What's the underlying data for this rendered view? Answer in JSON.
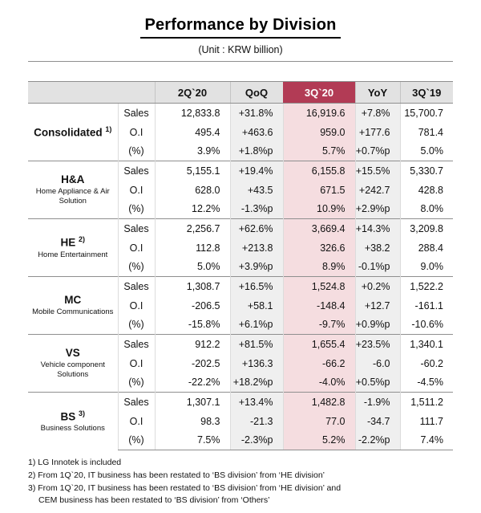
{
  "header": {
    "title": "Performance by Division",
    "unit": "(Unit : KRW billion)"
  },
  "table": {
    "columns": [
      "2Q`20",
      "QoQ",
      "3Q`20",
      "YoY",
      "3Q`19"
    ],
    "highlight_column_index": 2,
    "row_labels": [
      "Sales",
      "O.I",
      "(%)"
    ],
    "divisions": [
      {
        "name": "Consolidated",
        "sup": "1)",
        "subtitle": "",
        "rows": [
          [
            "12,833.8",
            "+31.8%",
            "16,919.6",
            "+7.8%",
            "15,700.7"
          ],
          [
            "495.4",
            "+463.6",
            "959.0",
            "+177.6",
            "781.4"
          ],
          [
            "3.9%",
            "+1.8%p",
            "5.7%",
            "+0.7%p",
            "5.0%"
          ]
        ]
      },
      {
        "name": "H&A",
        "sup": "",
        "subtitle": "Home Appliance & Air Solution",
        "rows": [
          [
            "5,155.1",
            "+19.4%",
            "6,155.8",
            "+15.5%",
            "5,330.7"
          ],
          [
            "628.0",
            "+43.5",
            "671.5",
            "+242.7",
            "428.8"
          ],
          [
            "12.2%",
            "-1.3%p",
            "10.9%",
            "+2.9%p",
            "8.0%"
          ]
        ]
      },
      {
        "name": "HE",
        "sup": "2)",
        "subtitle": "Home Entertainment",
        "rows": [
          [
            "2,256.7",
            "+62.6%",
            "3,669.4",
            "+14.3%",
            "3,209.8"
          ],
          [
            "112.8",
            "+213.8",
            "326.6",
            "+38.2",
            "288.4"
          ],
          [
            "5.0%",
            "+3.9%p",
            "8.9%",
            "-0.1%p",
            "9.0%"
          ]
        ]
      },
      {
        "name": "MC",
        "sup": "",
        "subtitle": "Mobile Communications",
        "rows": [
          [
            "1,308.7",
            "+16.5%",
            "1,524.8",
            "+0.2%",
            "1,522.2"
          ],
          [
            "-206.5",
            "+58.1",
            "-148.4",
            "+12.7",
            "-161.1"
          ],
          [
            "-15.8%",
            "+6.1%p",
            "-9.7%",
            "+0.9%p",
            "-10.6%"
          ]
        ]
      },
      {
        "name": "VS",
        "sup": "",
        "subtitle": "Vehicle component Solutions",
        "rows": [
          [
            "912.2",
            "+81.5%",
            "1,655.4",
            "+23.5%",
            "1,340.1"
          ],
          [
            "-202.5",
            "+136.3",
            "-66.2",
            "-6.0",
            "-60.2"
          ],
          [
            "-22.2%",
            "+18.2%p",
            "-4.0%",
            "+0.5%p",
            "-4.5%"
          ]
        ]
      },
      {
        "name": "BS",
        "sup": "3)",
        "subtitle": "Business Solutions",
        "rows": [
          [
            "1,307.1",
            "+13.4%",
            "1,482.8",
            "-1.9%",
            "1,511.2"
          ],
          [
            "98.3",
            "-21.3",
            "77.0",
            "-34.7",
            "111.7"
          ],
          [
            "7.5%",
            "-2.3%p",
            "5.2%",
            "-2.2%p",
            "7.4%"
          ]
        ]
      }
    ]
  },
  "footnotes": [
    {
      "text": "1) LG Innotek is included",
      "indent": false
    },
    {
      "text": "2) From 1Q`20, IT business has been restated to ‘BS division’ from ‘HE division’",
      "indent": false
    },
    {
      "text": "3) From 1Q`20, IT business has been restated to ‘BS division’ from ‘HE division’ and",
      "indent": false
    },
    {
      "text": "CEM business has been restated to ‘BS division’ from ‘Others’",
      "indent": true
    }
  ],
  "colors": {
    "accent_crimson": "#b23b55",
    "highlight_pink": "#f5dde0",
    "column_gray": "#efefef",
    "header_gray": "#e2e2e2"
  }
}
